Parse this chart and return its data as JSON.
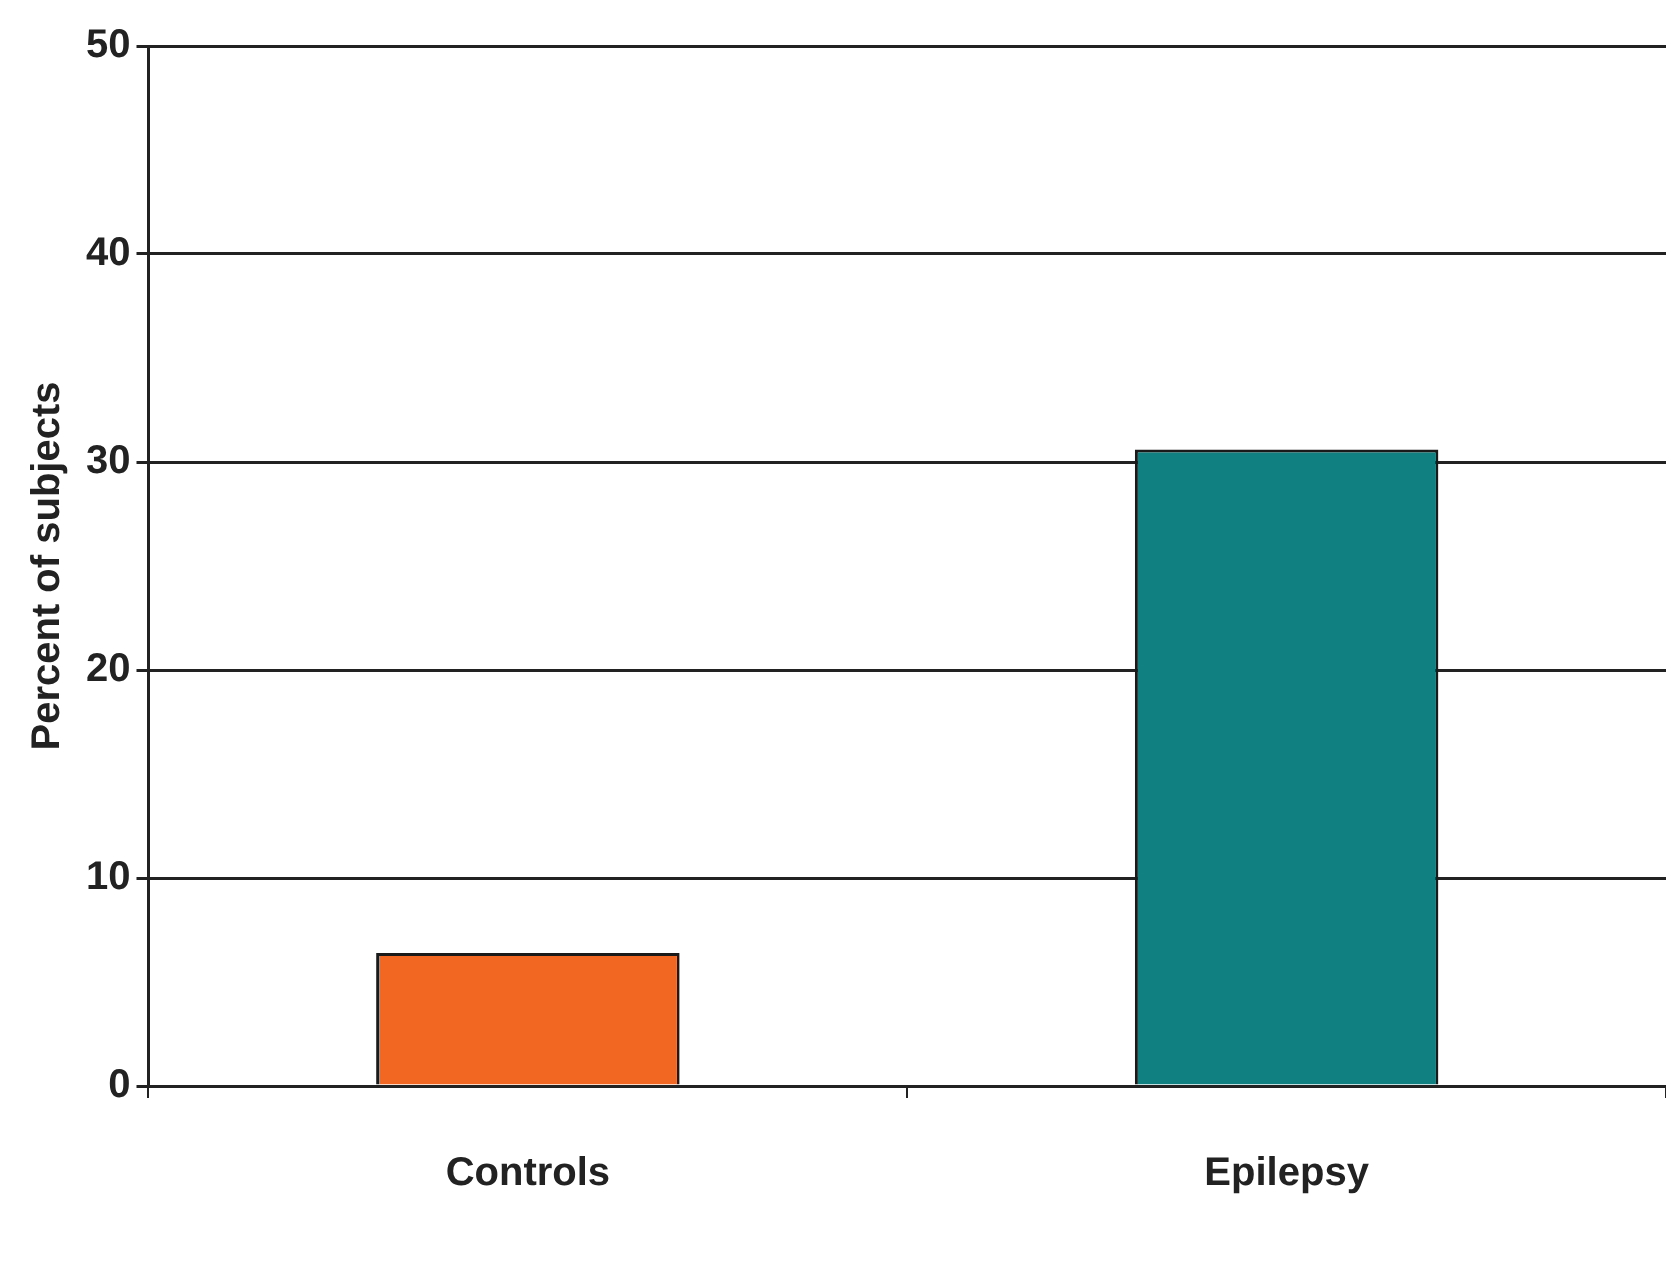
{
  "chart_data": {
    "type": "bar",
    "ylabel": "Percent of subjects",
    "categories": [
      "Controls",
      "Epilepsy"
    ],
    "values": [
      6.4,
      30.6
    ],
    "colors": [
      "#f26722",
      "#108080"
    ],
    "ylim": [
      0,
      50
    ],
    "yticks": [
      0,
      10,
      20,
      30,
      40,
      50
    ],
    "grid": "y"
  }
}
